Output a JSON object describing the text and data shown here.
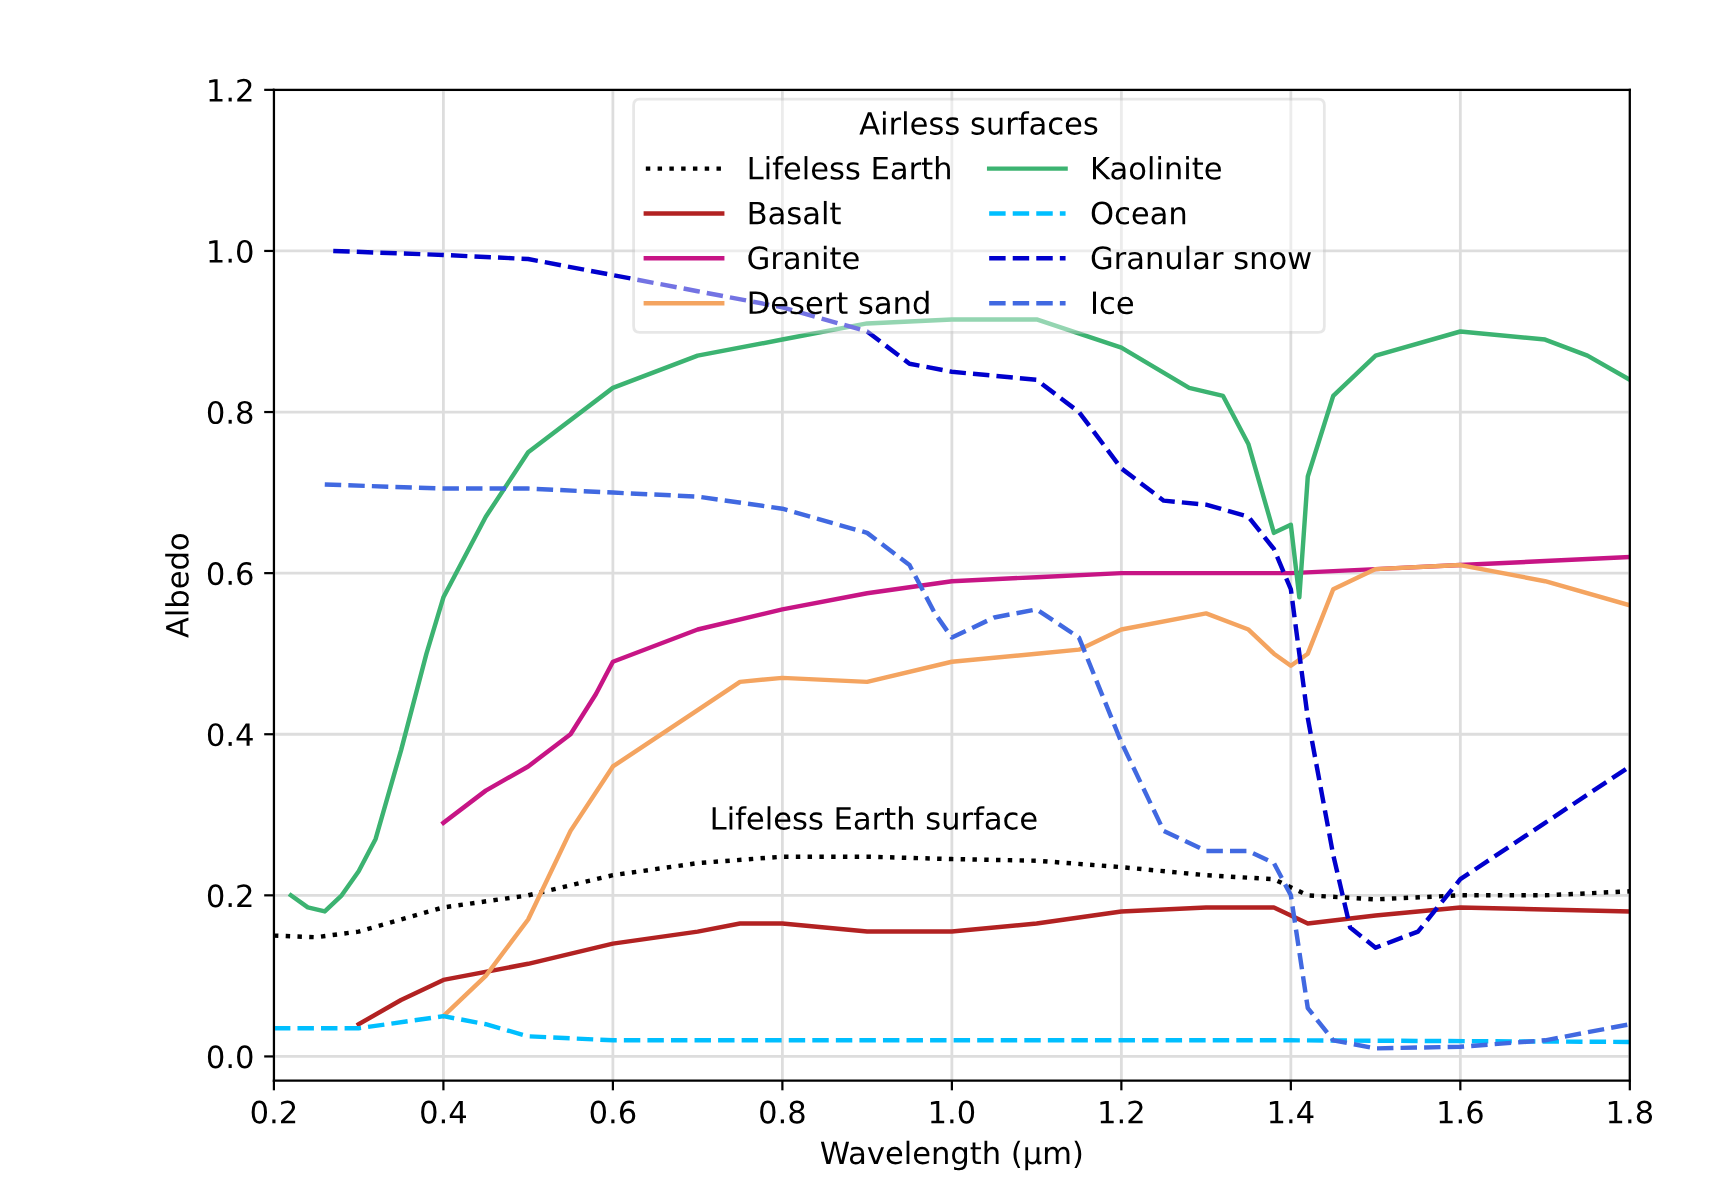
{
  "chart_data": {
    "type": "line",
    "xlabel": "Wavelength (μm)",
    "ylabel": "Albedo",
    "legend_title": "Airless surfaces",
    "legend": "top",
    "grid": true,
    "xlim": [
      0.2,
      1.8
    ],
    "xticks": [
      {
        "value": 0.2,
        "label": "0.2"
      },
      {
        "value": 0.4,
        "label": "0.4"
      },
      {
        "value": 0.6,
        "label": "0.6"
      },
      {
        "value": 0.8,
        "label": "0.8"
      },
      {
        "value": 1.0,
        "label": "1.0"
      },
      {
        "value": 1.2,
        "label": "1.2"
      },
      {
        "value": 1.4,
        "label": "1.4"
      },
      {
        "value": 1.6,
        "label": "1.6"
      },
      {
        "value": 1.8,
        "label": "1.8"
      }
    ],
    "ylim": [
      -0.03,
      1.2
    ],
    "yticks": [
      {
        "value": 0.0,
        "label": "0.0"
      },
      {
        "value": 0.2,
        "label": "0.2"
      },
      {
        "value": 0.4,
        "label": "0.4"
      },
      {
        "value": 0.6,
        "label": "0.6"
      },
      {
        "value": 0.8,
        "label": "0.8"
      },
      {
        "value": 1.0,
        "label": "1.0"
      },
      {
        "value": 1.2,
        "label": "1.2"
      }
    ],
    "annotations": [
      "Lifeless Earth surface"
    ],
    "series": [
      {
        "name": "Lifeless Earth",
        "color": "#000000",
        "line_style": "dotted",
        "x": [
          0.2,
          0.25,
          0.3,
          0.35,
          0.4,
          0.5,
          0.6,
          0.7,
          0.8,
          0.9,
          1.0,
          1.1,
          1.2,
          1.3,
          1.38,
          1.42,
          1.5,
          1.6,
          1.7,
          1.8
        ],
        "values": [
          0.15,
          0.148,
          0.155,
          0.17,
          0.185,
          0.2,
          0.225,
          0.24,
          0.248,
          0.248,
          0.245,
          0.243,
          0.235,
          0.225,
          0.22,
          0.2,
          0.195,
          0.2,
          0.2,
          0.205
        ]
      },
      {
        "name": "Basalt",
        "color": "#b22222",
        "line_style": "solid",
        "x": [
          0.3,
          0.35,
          0.4,
          0.5,
          0.6,
          0.7,
          0.75,
          0.8,
          0.9,
          1.0,
          1.1,
          1.2,
          1.3,
          1.38,
          1.42,
          1.5,
          1.6,
          1.8
        ],
        "values": [
          0.04,
          0.07,
          0.095,
          0.115,
          0.14,
          0.155,
          0.165,
          0.165,
          0.155,
          0.155,
          0.165,
          0.18,
          0.185,
          0.185,
          0.165,
          0.175,
          0.185,
          0.18
        ]
      },
      {
        "name": "Granite",
        "color": "#c71585",
        "line_style": "solid",
        "x": [
          0.4,
          0.45,
          0.5,
          0.55,
          0.58,
          0.6,
          0.7,
          0.8,
          0.9,
          1.0,
          1.1,
          1.2,
          1.3,
          1.4,
          1.5,
          1.6,
          1.7,
          1.8
        ],
        "values": [
          0.29,
          0.33,
          0.36,
          0.4,
          0.45,
          0.49,
          0.53,
          0.555,
          0.575,
          0.59,
          0.595,
          0.6,
          0.6,
          0.6,
          0.605,
          0.61,
          0.615,
          0.62
        ]
      },
      {
        "name": "Desert sand",
        "color": "#f4a460",
        "line_style": "solid",
        "x": [
          0.4,
          0.45,
          0.5,
          0.55,
          0.6,
          0.7,
          0.75,
          0.8,
          0.9,
          1.0,
          1.1,
          1.15,
          1.2,
          1.3,
          1.35,
          1.38,
          1.4,
          1.42,
          1.45,
          1.5,
          1.6,
          1.7,
          1.8
        ],
        "values": [
          0.05,
          0.1,
          0.17,
          0.28,
          0.36,
          0.43,
          0.465,
          0.47,
          0.465,
          0.49,
          0.5,
          0.505,
          0.53,
          0.55,
          0.53,
          0.5,
          0.485,
          0.5,
          0.58,
          0.605,
          0.61,
          0.59,
          0.56
        ]
      },
      {
        "name": "Kaolinite",
        "color": "#3cb371",
        "line_style": "solid",
        "x": [
          0.22,
          0.24,
          0.26,
          0.28,
          0.3,
          0.32,
          0.35,
          0.38,
          0.4,
          0.45,
          0.5,
          0.6,
          0.7,
          0.8,
          0.9,
          1.0,
          1.1,
          1.2,
          1.28,
          1.32,
          1.35,
          1.38,
          1.4,
          1.41,
          1.42,
          1.45,
          1.5,
          1.6,
          1.7,
          1.75,
          1.8
        ],
        "values": [
          0.2,
          0.185,
          0.18,
          0.2,
          0.23,
          0.27,
          0.38,
          0.5,
          0.57,
          0.67,
          0.75,
          0.83,
          0.87,
          0.89,
          0.91,
          0.915,
          0.915,
          0.88,
          0.83,
          0.82,
          0.76,
          0.65,
          0.66,
          0.57,
          0.72,
          0.82,
          0.87,
          0.9,
          0.89,
          0.87,
          0.84
        ]
      },
      {
        "name": "Ocean",
        "color": "#00bfff",
        "line_style": "dashed",
        "x": [
          0.2,
          0.3,
          0.4,
          0.45,
          0.5,
          0.6,
          0.8,
          1.0,
          1.4,
          1.8
        ],
        "values": [
          0.035,
          0.035,
          0.05,
          0.04,
          0.025,
          0.02,
          0.02,
          0.02,
          0.02,
          0.018
        ]
      },
      {
        "name": "Granular snow",
        "color": "#0000cd",
        "line_style": "dashed",
        "x": [
          0.27,
          0.4,
          0.5,
          0.6,
          0.7,
          0.8,
          0.9,
          0.95,
          1.0,
          1.1,
          1.15,
          1.2,
          1.25,
          1.3,
          1.35,
          1.38,
          1.4,
          1.42,
          1.45,
          1.47,
          1.5,
          1.55,
          1.6,
          1.7,
          1.8
        ],
        "values": [
          1.0,
          0.995,
          0.99,
          0.97,
          0.95,
          0.93,
          0.9,
          0.86,
          0.85,
          0.84,
          0.8,
          0.73,
          0.69,
          0.685,
          0.67,
          0.63,
          0.58,
          0.42,
          0.25,
          0.16,
          0.135,
          0.155,
          0.22,
          0.29,
          0.36
        ]
      },
      {
        "name": "Ice",
        "color": "#4169e1",
        "line_style": "dashed",
        "x": [
          0.26,
          0.4,
          0.5,
          0.6,
          0.7,
          0.8,
          0.9,
          0.95,
          0.98,
          1.0,
          1.05,
          1.1,
          1.15,
          1.2,
          1.25,
          1.3,
          1.35,
          1.38,
          1.4,
          1.42,
          1.45,
          1.5,
          1.6,
          1.7,
          1.8
        ],
        "values": [
          0.71,
          0.705,
          0.705,
          0.7,
          0.695,
          0.68,
          0.65,
          0.61,
          0.55,
          0.52,
          0.545,
          0.555,
          0.52,
          0.39,
          0.28,
          0.255,
          0.255,
          0.24,
          0.2,
          0.06,
          0.02,
          0.01,
          0.012,
          0.02,
          0.04
        ]
      }
    ]
  }
}
